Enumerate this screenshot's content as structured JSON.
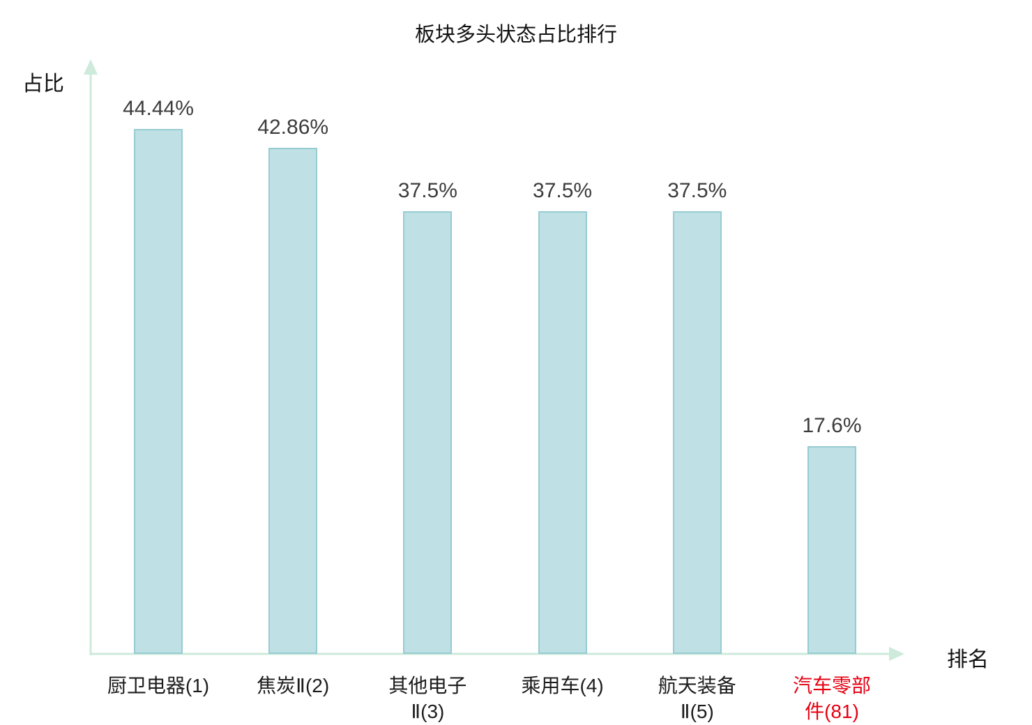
{
  "chart_data": {
    "type": "bar",
    "title": "板块多头状态占比排行",
    "xlabel": "排名",
    "ylabel": "占比",
    "categories": [
      "厨卫电器(1)",
      "焦炭Ⅱ(2)",
      "其他电子Ⅱ(3)",
      "乘用车(4)",
      "航天装备Ⅱ(5)",
      "汽车零部件(81)"
    ],
    "category_lines": [
      [
        "厨卫电器(1)"
      ],
      [
        "焦炭Ⅱ(2)"
      ],
      [
        "其他电子",
        "Ⅱ(3)"
      ],
      [
        "乘用车(4)"
      ],
      [
        "航天装备",
        "Ⅱ(5)"
      ],
      [
        "汽车零部",
        "件(81)"
      ]
    ],
    "values": [
      44.44,
      42.86,
      37.5,
      37.5,
      37.5,
      17.6
    ],
    "value_labels": [
      "44.44%",
      "42.86%",
      "37.5%",
      "37.5%",
      "37.5%",
      "17.6%"
    ],
    "highlight_index": 5,
    "ylim": [
      0,
      50
    ],
    "grid": false,
    "legend": "none",
    "colors": {
      "bar_fill": "#bfe0e4",
      "bar_border": "#96ccd2",
      "axis": "#cdeadb",
      "value_label": "#3c3c3c",
      "category_label": "#1c1c1c",
      "highlight_label": "#e60012"
    }
  }
}
